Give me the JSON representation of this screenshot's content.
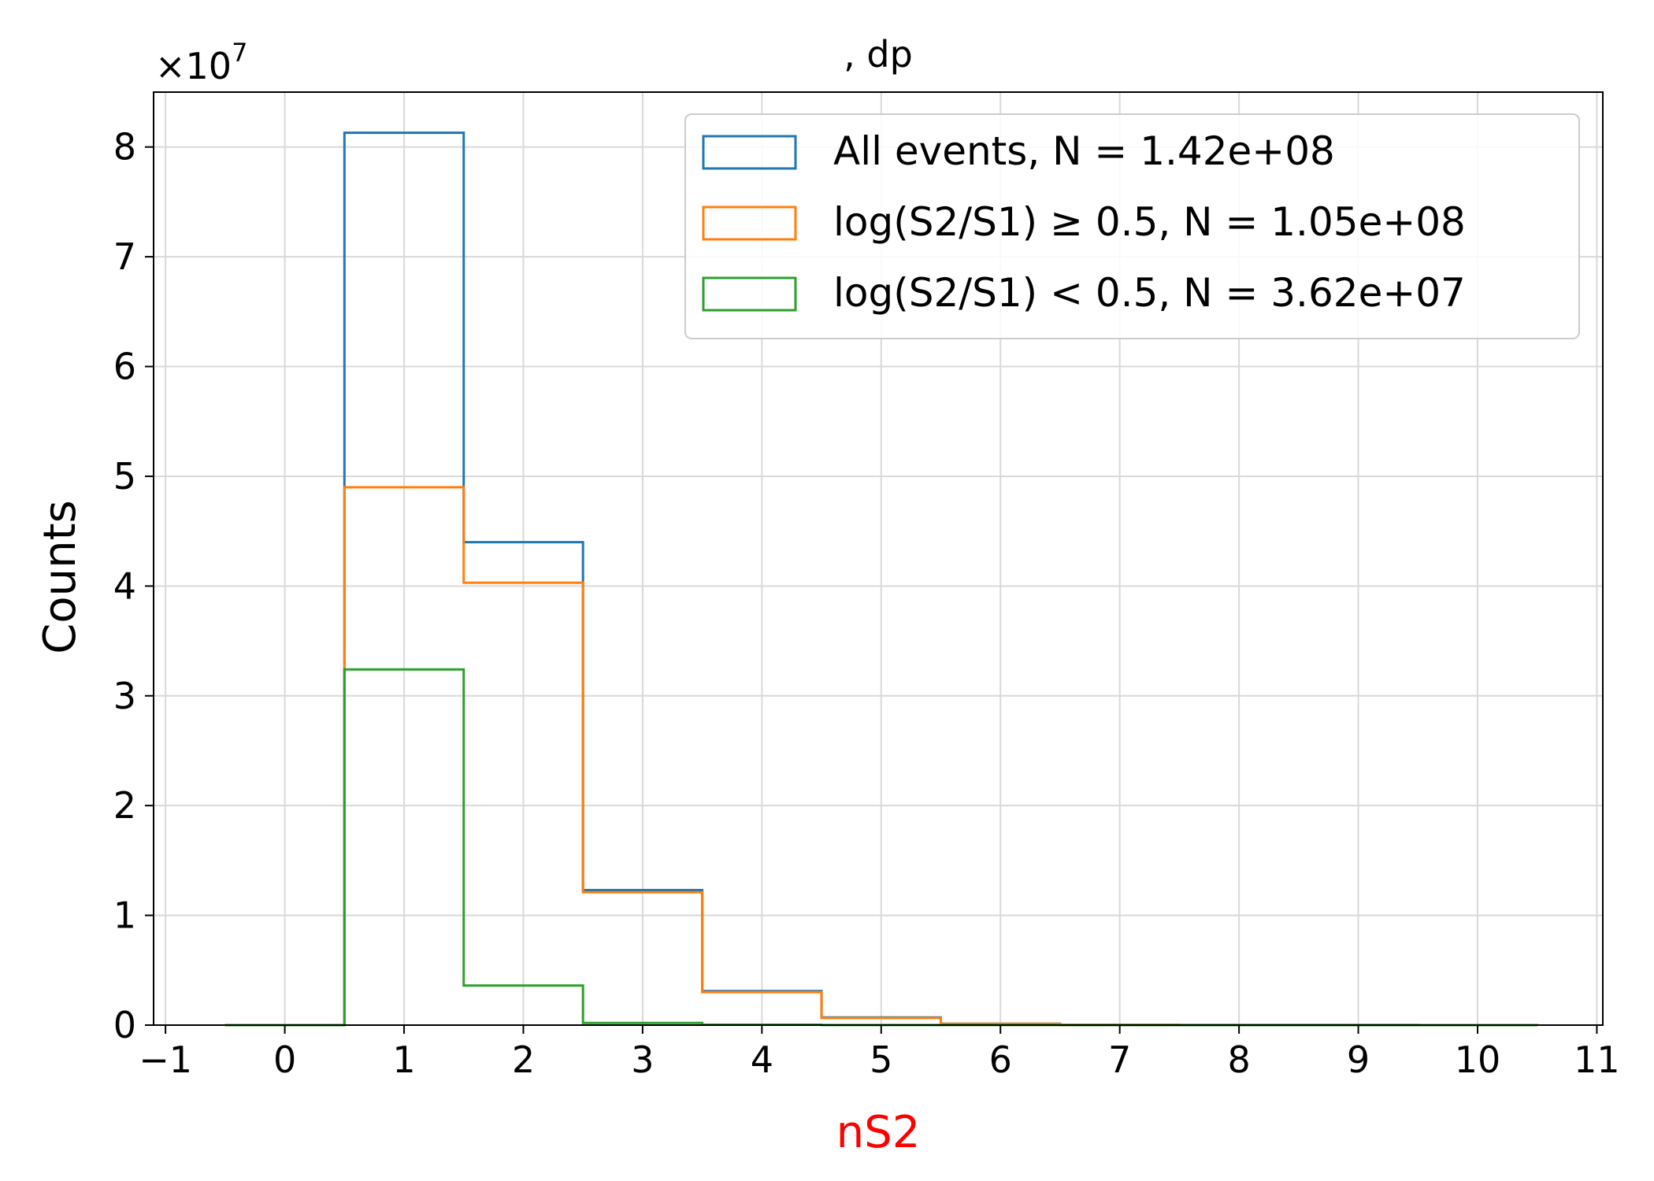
{
  "chart_data": {
    "type": "histogram-step",
    "title": ", dp",
    "xlabel": "nS2",
    "ylabel": "Counts",
    "y_multiplier_label": "×10",
    "y_multiplier_exponent": "7",
    "xlim": [
      -1,
      11
    ],
    "ylim": [
      0,
      8.5
    ],
    "xticks": [
      -1,
      0,
      1,
      2,
      3,
      4,
      5,
      6,
      7,
      8,
      9,
      10,
      11
    ],
    "xtick_labels": [
      "−1",
      "0",
      "1",
      "2",
      "3",
      "4",
      "5",
      "6",
      "7",
      "8",
      "9",
      "10",
      "11"
    ],
    "yticks": [
      0,
      1,
      2,
      3,
      4,
      5,
      6,
      7,
      8
    ],
    "ytick_labels": [
      "0",
      "1",
      "2",
      "3",
      "4",
      "5",
      "6",
      "7",
      "8"
    ],
    "bin_edges": [
      -0.5,
      0.5,
      1.5,
      2.5,
      3.5,
      4.5,
      5.5,
      6.5,
      7.5,
      8.5,
      9.5,
      10.5
    ],
    "grid": true,
    "legend_position": "top-right",
    "colors": {
      "xlabel": "#ff0000",
      "grid": "#d9d9d9",
      "axis": "#000000"
    },
    "series": [
      {
        "name": "All events, N = 1.42e+08",
        "color": "#1f77b4",
        "values": [
          0,
          8.13,
          4.4,
          1.23,
          0.31,
          0.07,
          0.013,
          0.003,
          0.001,
          0.0005,
          0.0002
        ]
      },
      {
        "name": "log(S2/S1) ≥ 0.5, N = 1.05e+08",
        "color": "#ff7f0e",
        "values": [
          0,
          4.9,
          4.03,
          1.21,
          0.3,
          0.065,
          0.012,
          0.003,
          0.001,
          0.0005,
          0.0002
        ]
      },
      {
        "name": "log(S2/S1) < 0.5, N = 3.62e+07",
        "color": "#2ca02c",
        "values": [
          0,
          3.24,
          0.36,
          0.02,
          0.004,
          0.001,
          0.0005,
          0.0002,
          0.0001,
          0,
          0
        ]
      }
    ]
  }
}
